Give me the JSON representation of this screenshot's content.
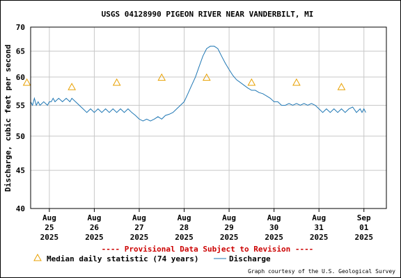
{
  "chart_data": {
    "type": "line",
    "title": "USGS 04128990 PIGEON RIVER NEAR VANDERBILT, MI",
    "ylabel": "Discharge, cubic feet per second",
    "xlabel": "",
    "y_scale": "log",
    "ylim": [
      40,
      70
    ],
    "y_ticks": [
      {
        "value": 70,
        "label": "70"
      },
      {
        "value": 65,
        "label": "65"
      },
      {
        "value": 60,
        "label": "60"
      },
      {
        "value": 55,
        "label": "55"
      },
      {
        "value": 50,
        "label": "50"
      },
      {
        "value": 45,
        "label": "45"
      },
      {
        "value": 40,
        "label": "40"
      }
    ],
    "xlim": [
      "2025-08-24T14:00",
      "2025-09-01T12:00"
    ],
    "x_ticks": [
      {
        "date": "2025-08-25",
        "lines": [
          "Aug",
          "25",
          "2025"
        ]
      },
      {
        "date": "2025-08-26",
        "lines": [
          "Aug",
          "26",
          "2025"
        ]
      },
      {
        "date": "2025-08-27",
        "lines": [
          "Aug",
          "27",
          "2025"
        ]
      },
      {
        "date": "2025-08-28",
        "lines": [
          "Aug",
          "28",
          "2025"
        ]
      },
      {
        "date": "2025-08-29",
        "lines": [
          "Aug",
          "29",
          "2025"
        ]
      },
      {
        "date": "2025-08-30",
        "lines": [
          "Aug",
          "30",
          "2025"
        ]
      },
      {
        "date": "2025-08-31",
        "lines": [
          "Aug",
          "31",
          "2025"
        ]
      },
      {
        "date": "2025-09-01",
        "lines": [
          "Sep",
          "01",
          "2025"
        ]
      }
    ],
    "grid": true,
    "series": [
      {
        "name": "Discharge",
        "color": "#1f77b4",
        "points": [
          [
            "2025-08-24T14:00",
            55.6
          ],
          [
            "2025-08-24T15:00",
            55.0
          ],
          [
            "2025-08-24T16:00",
            56.2
          ],
          [
            "2025-08-24T17:00",
            55.0
          ],
          [
            "2025-08-24T18:00",
            55.6
          ],
          [
            "2025-08-24T19:00",
            55.0
          ],
          [
            "2025-08-24T21:00",
            55.6
          ],
          [
            "2025-08-24T23:00",
            55.0
          ],
          [
            "2025-08-25T00:00",
            55.6
          ],
          [
            "2025-08-25T01:00",
            55.6
          ],
          [
            "2025-08-25T02:00",
            56.2
          ],
          [
            "2025-08-25T03:00",
            55.6
          ],
          [
            "2025-08-25T05:00",
            56.2
          ],
          [
            "2025-08-25T07:00",
            55.6
          ],
          [
            "2025-08-25T09:00",
            56.2
          ],
          [
            "2025-08-25T11:00",
            55.6
          ],
          [
            "2025-08-25T12:00",
            56.2
          ],
          [
            "2025-08-25T14:00",
            55.6
          ],
          [
            "2025-08-25T16:00",
            55.0
          ],
          [
            "2025-08-25T18:00",
            54.4
          ],
          [
            "2025-08-25T20:00",
            53.8
          ],
          [
            "2025-08-25T22:00",
            54.4
          ],
          [
            "2025-08-26T00:00",
            53.8
          ],
          [
            "2025-08-26T02:00",
            54.4
          ],
          [
            "2025-08-26T04:00",
            53.8
          ],
          [
            "2025-08-26T06:00",
            54.4
          ],
          [
            "2025-08-26T08:00",
            53.8
          ],
          [
            "2025-08-26T10:00",
            54.4
          ],
          [
            "2025-08-26T12:00",
            53.8
          ],
          [
            "2025-08-26T14:00",
            54.4
          ],
          [
            "2025-08-26T16:00",
            53.8
          ],
          [
            "2025-08-26T18:00",
            54.4
          ],
          [
            "2025-08-26T20:00",
            53.8
          ],
          [
            "2025-08-26T22:00",
            53.3
          ],
          [
            "2025-08-27T00:00",
            52.7
          ],
          [
            "2025-08-27T02:00",
            52.4
          ],
          [
            "2025-08-27T04:00",
            52.7
          ],
          [
            "2025-08-27T06:00",
            52.4
          ],
          [
            "2025-08-27T08:00",
            52.7
          ],
          [
            "2025-08-27T10:00",
            53.1
          ],
          [
            "2025-08-27T12:00",
            52.7
          ],
          [
            "2025-08-27T14:00",
            53.3
          ],
          [
            "2025-08-27T16:00",
            53.5
          ],
          [
            "2025-08-27T18:00",
            53.8
          ],
          [
            "2025-08-27T20:00",
            54.4
          ],
          [
            "2025-08-27T22:00",
            55.0
          ],
          [
            "2025-08-28T00:00",
            55.6
          ],
          [
            "2025-08-28T02:00",
            57.0
          ],
          [
            "2025-08-28T04:00",
            58.5
          ],
          [
            "2025-08-28T06:00",
            60.0
          ],
          [
            "2025-08-28T08:00",
            62.0
          ],
          [
            "2025-08-28T10:00",
            64.0
          ],
          [
            "2025-08-28T12:00",
            65.5
          ],
          [
            "2025-08-28T14:00",
            66.0
          ],
          [
            "2025-08-28T16:00",
            66.0
          ],
          [
            "2025-08-28T18:00",
            65.5
          ],
          [
            "2025-08-28T20:00",
            64.0
          ],
          [
            "2025-08-28T22:00",
            62.6
          ],
          [
            "2025-08-29T00:00",
            61.4
          ],
          [
            "2025-08-29T02:00",
            60.3
          ],
          [
            "2025-08-29T04:00",
            59.5
          ],
          [
            "2025-08-29T06:00",
            59.0
          ],
          [
            "2025-08-29T08:00",
            58.5
          ],
          [
            "2025-08-29T10:00",
            58.0
          ],
          [
            "2025-08-29T12:00",
            57.6
          ],
          [
            "2025-08-29T14:00",
            57.6
          ],
          [
            "2025-08-29T16:00",
            57.2
          ],
          [
            "2025-08-29T18:00",
            57.0
          ],
          [
            "2025-08-29T20:00",
            56.6
          ],
          [
            "2025-08-29T22:00",
            56.2
          ],
          [
            "2025-08-30T00:00",
            55.6
          ],
          [
            "2025-08-30T02:00",
            55.6
          ],
          [
            "2025-08-30T04:00",
            55.0
          ],
          [
            "2025-08-30T06:00",
            55.0
          ],
          [
            "2025-08-30T08:00",
            55.3
          ],
          [
            "2025-08-30T10:00",
            55.0
          ],
          [
            "2025-08-30T12:00",
            55.3
          ],
          [
            "2025-08-30T14:00",
            55.0
          ],
          [
            "2025-08-30T16:00",
            55.3
          ],
          [
            "2025-08-30T18:00",
            55.0
          ],
          [
            "2025-08-30T20:00",
            55.3
          ],
          [
            "2025-08-30T22:00",
            55.0
          ],
          [
            "2025-08-31T00:00",
            54.4
          ],
          [
            "2025-08-31T02:00",
            53.8
          ],
          [
            "2025-08-31T04:00",
            54.4
          ],
          [
            "2025-08-31T06:00",
            53.8
          ],
          [
            "2025-08-31T08:00",
            54.4
          ],
          [
            "2025-08-31T10:00",
            53.8
          ],
          [
            "2025-08-31T12:00",
            54.4
          ],
          [
            "2025-08-31T14:00",
            53.8
          ],
          [
            "2025-08-31T16:00",
            54.4
          ],
          [
            "2025-08-31T18:00",
            54.7
          ],
          [
            "2025-08-31T20:00",
            53.8
          ],
          [
            "2025-08-31T22:00",
            54.4
          ],
          [
            "2025-08-31T23:00",
            53.8
          ],
          [
            "2025-09-01T00:00",
            54.4
          ],
          [
            "2025-09-01T01:00",
            53.8
          ]
        ]
      },
      {
        "name": "Median daily statistic (74 years)",
        "color": "#e8a000",
        "marker": "triangle",
        "points": [
          [
            "2025-08-24T12:00",
            59.0
          ],
          [
            "2025-08-25T12:00",
            58.2
          ],
          [
            "2025-08-26T12:00",
            59.0
          ],
          [
            "2025-08-27T12:00",
            59.9
          ],
          [
            "2025-08-28T12:00",
            59.9
          ],
          [
            "2025-08-29T12:00",
            59.0
          ],
          [
            "2025-08-30T12:00",
            59.0
          ],
          [
            "2025-08-31T12:00",
            58.2
          ]
        ]
      }
    ],
    "provisional_notice": "---- Provisional Data Subject to Revision ----",
    "legend": {
      "median_label": "Median daily statistic (74 years)",
      "discharge_label": "Discharge"
    },
    "credit": "Graph courtesy of the U.S. Geological Survey"
  }
}
